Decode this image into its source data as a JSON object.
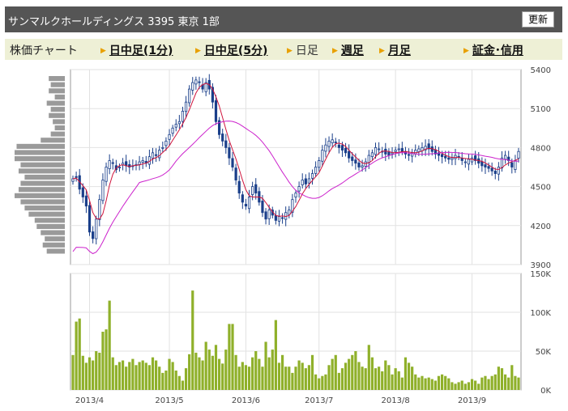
{
  "header": {
    "title": "サンマルクホールディングス 3395 東京 1部",
    "refresh_label": "更新"
  },
  "tabs": {
    "label": "株価チャート",
    "items": [
      {
        "label": "日中足(1分)",
        "link": true
      },
      {
        "label": "日中足(5分)",
        "link": true
      },
      {
        "label": "日足",
        "link": false
      },
      {
        "label": "週足",
        "link": true
      },
      {
        "label": "月足",
        "link": true
      },
      {
        "label": "証金･信用",
        "link": true
      }
    ]
  },
  "chart_data": [
    {
      "type": "candlestick",
      "title": "",
      "y_ticks": [
        "5400",
        "5100",
        "4800",
        "4500",
        "4200",
        "3900"
      ],
      "ylim": [
        3900,
        5400
      ],
      "x_ticks": [
        "2013/4",
        "2013/5",
        "2013/6",
        "2013/7",
        "2013/8",
        "2013/9"
      ],
      "x_tick_index": [
        5,
        29,
        52,
        74,
        97,
        120
      ],
      "n_days": 135,
      "closes": [
        4560,
        4570,
        4480,
        4420,
        4350,
        4150,
        4100,
        4250,
        4400,
        4550,
        4650,
        4700,
        4680,
        4630,
        4650,
        4680,
        4660,
        4650,
        4660,
        4670,
        4690,
        4700,
        4680,
        4730,
        4760,
        4740,
        4780,
        4800,
        4850,
        4900,
        4950,
        4980,
        5000,
        5080,
        5150,
        5250,
        5300,
        5320,
        5300,
        5250,
        5300,
        5250,
        5150,
        5000,
        4900,
        4850,
        4800,
        4720,
        4650,
        4550,
        4450,
        4380,
        4350,
        4420,
        4500,
        4450,
        4380,
        4300,
        4250,
        4320,
        4280,
        4240,
        4270,
        4260,
        4300,
        4320,
        4400,
        4450,
        4500,
        4550,
        4520,
        4560,
        4600,
        4650,
        4700,
        4780,
        4820,
        4850,
        4860,
        4840,
        4800,
        4780,
        4760,
        4720,
        4700,
        4680,
        4650,
        4660,
        4690,
        4740,
        4760,
        4800,
        4790,
        4770,
        4750,
        4740,
        4760,
        4780,
        4790,
        4770,
        4750,
        4740,
        4760,
        4780,
        4790,
        4800,
        4810,
        4790,
        4770,
        4750,
        4740,
        4730,
        4720,
        4710,
        4720,
        4740,
        4730,
        4700,
        4690,
        4710,
        4720,
        4700,
        4680,
        4660,
        4650,
        4640,
        4620,
        4600,
        4650,
        4720,
        4740,
        4700,
        4650,
        4700,
        4770
      ],
      "ma_short": "short moving average (red)",
      "ma_long": "long moving average (magenta)",
      "volume_profile": [
        8,
        7,
        8,
        5,
        9,
        7,
        8,
        6,
        5,
        7,
        12,
        24,
        25,
        25,
        22,
        23,
        20,
        22,
        23,
        25,
        22,
        20,
        18,
        15,
        14,
        12,
        10,
        11,
        9
      ]
    },
    {
      "type": "bar",
      "title": "",
      "y_ticks": [
        "150K",
        "100K",
        "50K",
        "0K"
      ],
      "ylim": [
        0,
        150
      ],
      "unit": "K",
      "values": [
        45,
        88,
        92,
        44,
        35,
        42,
        38,
        50,
        48,
        75,
        78,
        115,
        42,
        32,
        36,
        38,
        30,
        36,
        40,
        32,
        36,
        38,
        35,
        32,
        42,
        38,
        30,
        22,
        25,
        40,
        36,
        25,
        18,
        12,
        28,
        46,
        128,
        48,
        42,
        38,
        62,
        52,
        44,
        58,
        40,
        34,
        52,
        85,
        85,
        45,
        30,
        36,
        32,
        30,
        42,
        50,
        40,
        30,
        62,
        42,
        52,
        90,
        35,
        45,
        30,
        30,
        22,
        30,
        38,
        35,
        28,
        32,
        45,
        20,
        15,
        18,
        20,
        32,
        40,
        45,
        22,
        28,
        35,
        40,
        45,
        50,
        36,
        30,
        28,
        58,
        42,
        28,
        30,
        24,
        38,
        32,
        20,
        28,
        24,
        16,
        42,
        35,
        30,
        20,
        16,
        18,
        15,
        16,
        14,
        12,
        18,
        20,
        18,
        15,
        10,
        8,
        10,
        12,
        8,
        10,
        14,
        12,
        8,
        16,
        18,
        14,
        18,
        20,
        30,
        28,
        20,
        16,
        32,
        18,
        16
      ]
    }
  ]
}
